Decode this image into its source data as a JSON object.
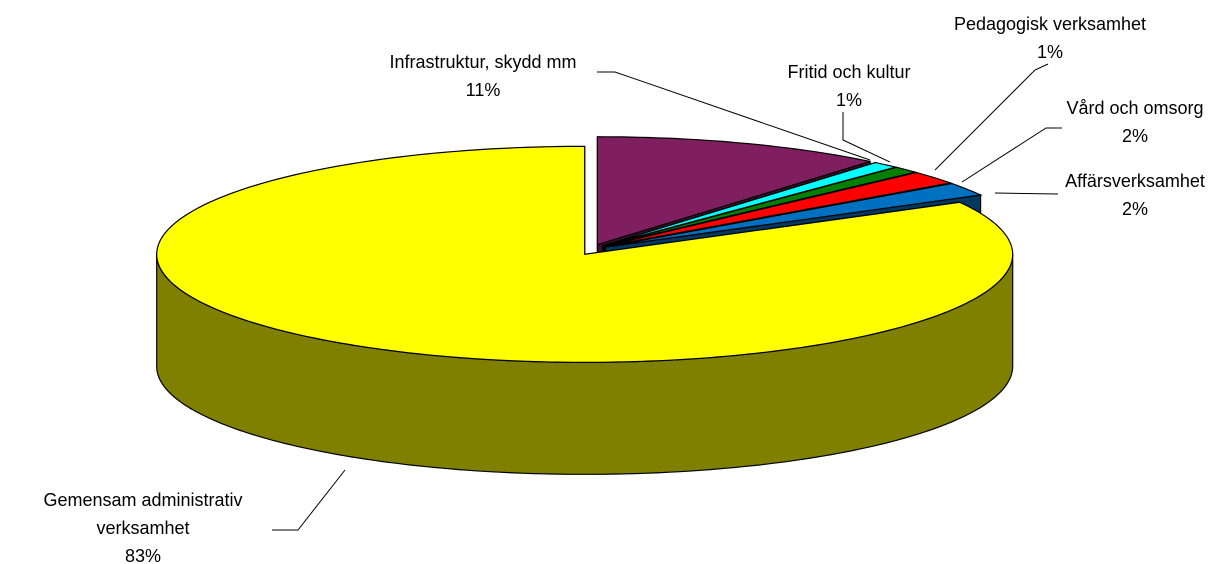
{
  "chart_data": {
    "type": "pie3d",
    "categories": [
      "Infrastruktur, skydd mm",
      "Fritid och kultur",
      "Pedagogisk verksamhet",
      "Vård och omsorg",
      "Affärsverksamhet",
      "Gemensam administrativ verksamhet"
    ],
    "values": [
      11,
      1,
      1,
      2,
      2,
      83
    ],
    "value_labels": [
      "11%",
      "1%",
      "1%",
      "2%",
      "2%",
      "83%"
    ],
    "colors": [
      "#7f1f5f",
      "#00ffff",
      "#008000",
      "#ff0000",
      "#0070c0",
      "#ffff00"
    ]
  }
}
